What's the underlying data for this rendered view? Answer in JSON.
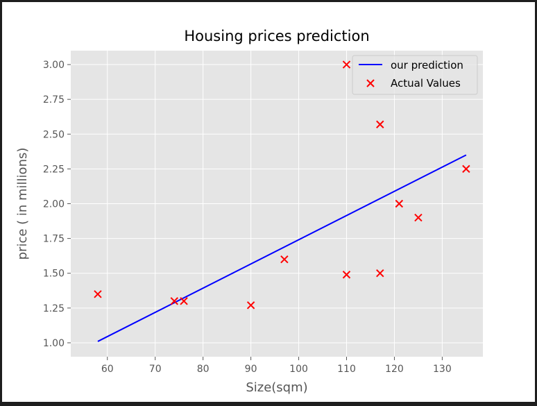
{
  "chart_data": {
    "type": "scatter",
    "title": "Housing prices prediction",
    "xlabel": "Size(sqm)",
    "ylabel": "price ( in millions)",
    "xlim": [
      52.35,
      138.5
    ],
    "ylim": [
      0.9,
      3.1
    ],
    "xticks": [
      60,
      70,
      80,
      90,
      100,
      110,
      120,
      130
    ],
    "yticks": [
      1.0,
      1.25,
      1.5,
      1.75,
      2.0,
      2.25,
      2.5,
      2.75,
      3.0
    ],
    "grid": true,
    "legend_position": "top-right",
    "series": [
      {
        "name": "our prediction",
        "kind": "line",
        "color": "#0000ff",
        "x": [
          58,
          135
        ],
        "y": [
          1.01,
          2.35
        ]
      },
      {
        "name": "Actual Values",
        "kind": "scatter",
        "marker": "x",
        "color": "#ff0000",
        "x": [
          58,
          74,
          76,
          90,
          97,
          110,
          110,
          117,
          117,
          121,
          125,
          135
        ],
        "y": [
          1.35,
          1.3,
          1.3,
          1.27,
          1.6,
          1.49,
          3.0,
          1.5,
          2.57,
          2.0,
          1.9,
          2.25
        ]
      }
    ]
  }
}
